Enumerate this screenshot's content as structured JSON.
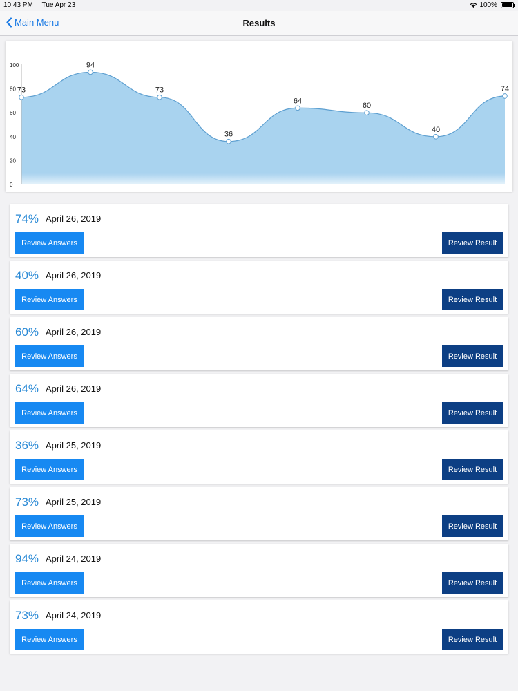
{
  "status_bar": {
    "time": "10:43 PM",
    "date": "Tue Apr 23",
    "battery": "100%"
  },
  "nav": {
    "back_label": "Main Menu",
    "title": "Results"
  },
  "colors": {
    "accent": "#1a7ae4",
    "score_text": "#2a8ad6",
    "review_answers_bg": "#1789f2",
    "review_result_bg": "#0d3f84",
    "area_fill": "#a9d3ef",
    "line": "#5d9fd0"
  },
  "chart_data": {
    "type": "area",
    "title": "",
    "xlabel": "",
    "ylabel": "",
    "ylim": [
      0,
      100
    ],
    "yticks": [
      0,
      20,
      40,
      60,
      80,
      100
    ],
    "values": [
      73,
      94,
      73,
      36,
      64,
      60,
      40,
      74
    ],
    "smooth": true,
    "grid": false
  },
  "results": [
    {
      "score": "74%",
      "date": "April 26, 2019"
    },
    {
      "score": "40%",
      "date": "April 26, 2019"
    },
    {
      "score": "60%",
      "date": "April 26, 2019"
    },
    {
      "score": "64%",
      "date": "April 26, 2019"
    },
    {
      "score": "36%",
      "date": "April 25, 2019"
    },
    {
      "score": "73%",
      "date": "April 25, 2019"
    },
    {
      "score": "94%",
      "date": "April 24, 2019"
    },
    {
      "score": "73%",
      "date": "April 24, 2019"
    }
  ],
  "buttons": {
    "review_answers": "Review Answers",
    "review_result": "Review Result"
  }
}
